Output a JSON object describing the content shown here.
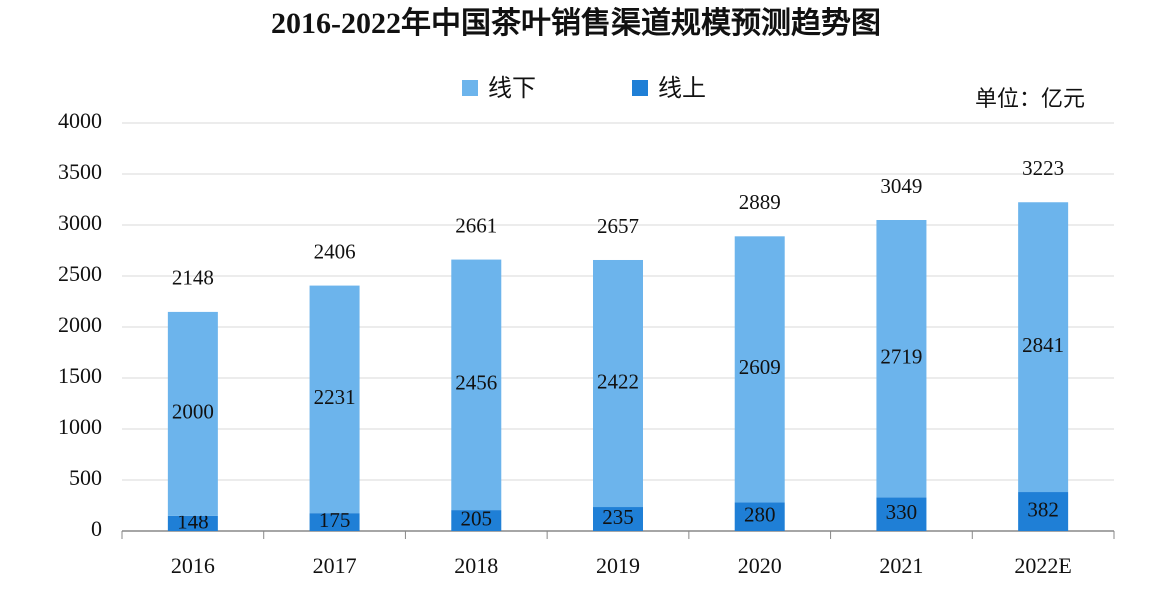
{
  "chart_data": {
    "type": "stacked_bar",
    "title": "2016-2022年中国茶叶销售渠道规模预测趋势图",
    "unit": "单位：亿元",
    "categories": [
      "2016",
      "2017",
      "2018",
      "2019",
      "2020",
      "2021",
      "2022E"
    ],
    "series": [
      {
        "name": "线上",
        "color": "#1f7fd6",
        "values": [
          148,
          175,
          205,
          235,
          280,
          330,
          382
        ]
      },
      {
        "name": "线下",
        "color": "#6cb4ec",
        "values": [
          2000,
          2231,
          2456,
          2422,
          2609,
          2719,
          2841
        ]
      }
    ],
    "legend_order": [
      1,
      0
    ],
    "totals": [
      2148,
      2406,
      2661,
      2657,
      2889,
      3049,
      3223
    ],
    "ylim": [
      0,
      4000
    ],
    "yticks": [
      0,
      500,
      1000,
      1500,
      2000,
      2500,
      3000,
      3500,
      4000
    ],
    "grid": true
  }
}
